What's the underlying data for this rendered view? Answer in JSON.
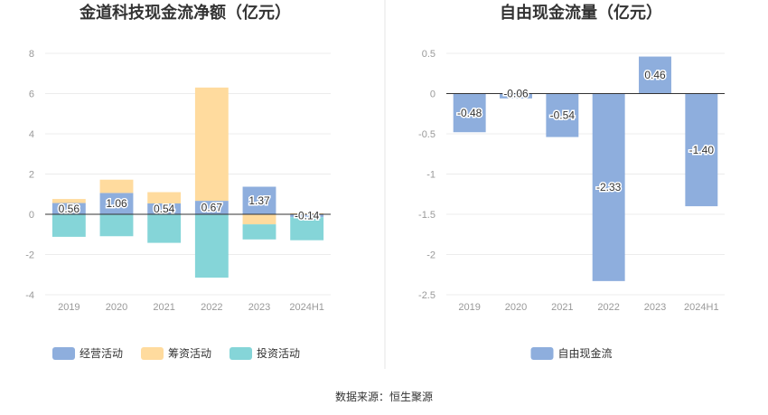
{
  "footer": {
    "source": "数据来源：恒生聚源"
  },
  "chart_data": [
    {
      "type": "bar",
      "title": "金道科技现金流净额（亿元）",
      "categories": [
        "2019",
        "2020",
        "2021",
        "2022",
        "2023",
        "2024H1"
      ],
      "ylim": [
        -4,
        8
      ],
      "yticks": [
        "8",
        "6",
        "4",
        "2",
        "0",
        "-2",
        "-4"
      ],
      "stacked": true,
      "grid": true,
      "legend_position": "bottom",
      "series": [
        {
          "name": "经营活动",
          "color": "#8eaedd",
          "values": [
            0.56,
            1.06,
            0.54,
            0.67,
            1.37,
            -0.14
          ],
          "labels": [
            "0.56",
            "1.06",
            "0.54",
            "0.67",
            "1.37",
            "-0.14"
          ]
        },
        {
          "name": "筹资活动",
          "color": "#ffdb9e",
          "values": [
            0.2,
            0.66,
            0.56,
            5.63,
            -0.5,
            0.05
          ]
        },
        {
          "name": "投资活动",
          "color": "#85d5d8",
          "values": [
            -1.12,
            -1.09,
            -1.42,
            -3.15,
            -0.75,
            -1.15
          ]
        }
      ]
    },
    {
      "type": "bar",
      "title": "自由现金流量（亿元）",
      "categories": [
        "2019",
        "2020",
        "2021",
        "2022",
        "2023",
        "2024H1"
      ],
      "ylim": [
        -2.5,
        0.5
      ],
      "yticks": [
        "0.5",
        "0",
        "-0.5",
        "-1",
        "-1.5",
        "-2",
        "-2.5"
      ],
      "grid": true,
      "legend_position": "bottom",
      "series": [
        {
          "name": "自由现金流",
          "color": "#8eaedd",
          "values": [
            -0.48,
            -0.06,
            -0.54,
            -2.33,
            0.46,
            -1.4
          ],
          "labels": [
            "-0.48",
            "-0.06",
            "-0.54",
            "-2.33",
            "0.46",
            "-1.40"
          ]
        }
      ]
    }
  ]
}
